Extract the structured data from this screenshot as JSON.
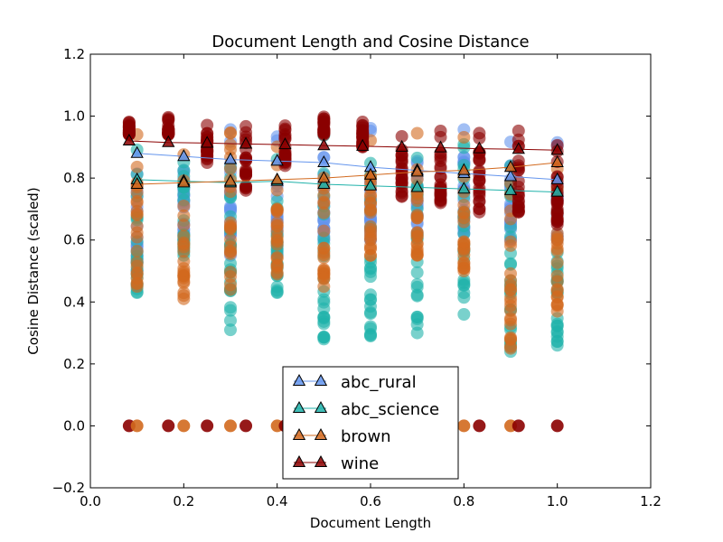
{
  "chart_data": {
    "type": "scatter",
    "title": "Document Length and Cosine Distance",
    "xlabel": "Document Length",
    "ylabel": "Cosine Distance (scaled)",
    "xlim": [
      0.0,
      1.2
    ],
    "ylim": [
      -0.2,
      1.2
    ],
    "xticks": [
      "0.0",
      "0.2",
      "0.4",
      "0.6",
      "0.8",
      "1.0",
      "1.2"
    ],
    "yticks": [
      "−0.2",
      "0.0",
      "0.2",
      "0.4",
      "0.6",
      "0.8",
      "1.0",
      "1.2"
    ],
    "grid": false,
    "legend_position": "lower-center",
    "series": [
      {
        "name": "abc_rural",
        "color": "#6495ed",
        "marker": "triangle",
        "mean_x": [
          0.1,
          0.2,
          0.3,
          0.4,
          0.5,
          0.6,
          0.7,
          0.8,
          0.9,
          1.0
        ],
        "mean_y": [
          0.88,
          0.87,
          0.86,
          0.855,
          0.85,
          0.835,
          0.825,
          0.815,
          0.805,
          0.795
        ],
        "scatter_x": [
          0.1,
          0.2,
          0.3,
          0.4,
          0.5,
          0.6,
          0.7,
          0.8,
          0.9,
          1.0
        ],
        "scatter_range": [
          [
            0.5,
            1.0
          ],
          [
            0.6,
            1.0
          ],
          [
            0.55,
            1.0
          ],
          [
            0.55,
            1.0
          ],
          [
            0.6,
            1.0
          ],
          [
            0.6,
            1.0
          ],
          [
            0.62,
            1.0
          ],
          [
            0.62,
            1.0
          ],
          [
            0.6,
            1.0
          ],
          [
            0.6,
            1.0
          ]
        ]
      },
      {
        "name": "abc_science",
        "color": "#20b2aa",
        "marker": "triangle",
        "mean_x": [
          0.1,
          0.2,
          0.3,
          0.4,
          0.5,
          0.6,
          0.7,
          0.8,
          0.9,
          1.0
        ],
        "mean_y": [
          0.795,
          0.79,
          0.785,
          0.79,
          0.78,
          0.775,
          0.77,
          0.765,
          0.76,
          0.755
        ],
        "scatter_x": [
          0.1,
          0.2,
          0.3,
          0.4,
          0.5,
          0.6,
          0.7,
          0.8,
          0.9,
          1.0
        ],
        "scatter_range": [
          [
            0.43,
            1.0
          ],
          [
            0.55,
            1.0
          ],
          [
            0.31,
            1.0
          ],
          [
            0.43,
            1.0
          ],
          [
            0.28,
            1.0
          ],
          [
            0.29,
            1.0
          ],
          [
            0.3,
            1.0
          ],
          [
            0.36,
            1.0
          ],
          [
            0.24,
            1.0
          ],
          [
            0.26,
            1.0
          ]
        ]
      },
      {
        "name": "brown",
        "color": "#d2691e",
        "marker": "triangle",
        "mean_x": [
          0.1,
          0.2,
          0.3,
          0.4,
          0.5,
          0.6,
          0.7,
          0.8,
          0.9,
          1.0
        ],
        "mean_y": [
          0.78,
          0.785,
          0.79,
          0.795,
          0.8,
          0.81,
          0.82,
          0.825,
          0.835,
          0.85
        ],
        "scatter_x": [
          0.1,
          0.2,
          0.3,
          0.4,
          0.5,
          0.6,
          0.7,
          0.8,
          0.9,
          1.0
        ],
        "scatter_range": [
          [
            0.45,
            1.0
          ],
          [
            0.41,
            1.0
          ],
          [
            0.44,
            1.0
          ],
          [
            0.49,
            1.0
          ],
          [
            0.45,
            1.0
          ],
          [
            0.55,
            1.0
          ],
          [
            0.55,
            1.0
          ],
          [
            0.5,
            1.0
          ],
          [
            0.25,
            1.0
          ],
          [
            0.37,
            1.0
          ]
        ]
      },
      {
        "name": "wine",
        "color": "#8b0000",
        "marker": "triangle",
        "mean_x": [
          0.083,
          0.167,
          0.25,
          0.333,
          0.417,
          0.5,
          0.583,
          0.667,
          0.75,
          0.833,
          0.917,
          1.0
        ],
        "mean_y": [
          0.92,
          0.915,
          0.913,
          0.91,
          0.908,
          0.905,
          0.903,
          0.9,
          0.898,
          0.895,
          0.893,
          0.89
        ],
        "scatter_x": [
          0.083,
          0.167,
          0.25,
          0.333,
          0.417,
          0.5,
          0.583,
          0.667,
          0.75,
          0.833,
          0.917,
          1.0
        ],
        "scatter_range": [
          [
            0.94,
            1.0
          ],
          [
            0.94,
            1.0
          ],
          [
            0.85,
            1.0
          ],
          [
            0.76,
            1.0
          ],
          [
            0.84,
            1.0
          ],
          [
            0.94,
            1.0
          ],
          [
            0.9,
            1.0
          ],
          [
            0.74,
            1.0
          ],
          [
            0.72,
            1.0
          ],
          [
            0.69,
            1.0
          ],
          [
            0.69,
            1.0
          ],
          [
            0.65,
            1.0
          ]
        ]
      }
    ],
    "zero_points": {
      "x": [
        0.083,
        0.1,
        0.167,
        0.2,
        0.25,
        0.3,
        0.333,
        0.4,
        0.417,
        0.5,
        0.583,
        0.6,
        0.667,
        0.7,
        0.75,
        0.8,
        0.833,
        0.9,
        0.917,
        1.0
      ],
      "y": 0.0
    }
  }
}
